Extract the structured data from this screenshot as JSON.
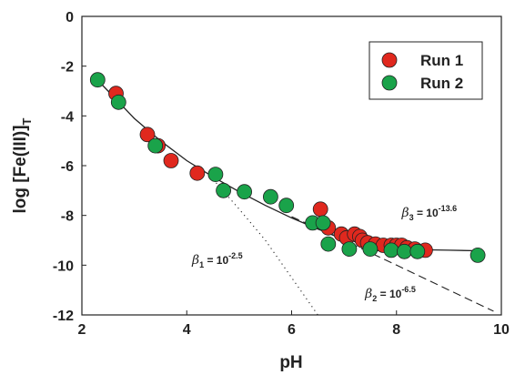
{
  "chart_data": {
    "type": "scatter",
    "xlabel": "pH",
    "ylabel_main": "log [Fe(III)]",
    "ylabel_sub": "T",
    "xlim": [
      2,
      10
    ],
    "ylim": [
      -12,
      0
    ],
    "xticks": [
      2,
      4,
      6,
      8,
      10
    ],
    "yticks": [
      0,
      -2,
      -4,
      -6,
      -8,
      -10,
      -12
    ],
    "grid": false,
    "legend_position": "top-right",
    "series": [
      {
        "name": "Run 1",
        "color": "#e0281e",
        "points": [
          [
            2.65,
            -3.1
          ],
          [
            3.25,
            -4.75
          ],
          [
            3.45,
            -5.2
          ],
          [
            3.7,
            -5.8
          ],
          [
            4.2,
            -6.3
          ],
          [
            6.55,
            -7.75
          ],
          [
            6.7,
            -8.5
          ],
          [
            6.95,
            -8.75
          ],
          [
            7.05,
            -8.9
          ],
          [
            7.2,
            -8.75
          ],
          [
            7.3,
            -8.85
          ],
          [
            7.35,
            -9.0
          ],
          [
            7.45,
            -9.1
          ],
          [
            7.6,
            -9.15
          ],
          [
            7.75,
            -9.2
          ],
          [
            7.9,
            -9.2
          ],
          [
            8.0,
            -9.2
          ],
          [
            8.1,
            -9.2
          ],
          [
            8.2,
            -9.3
          ],
          [
            8.35,
            -9.35
          ],
          [
            8.55,
            -9.4
          ]
        ]
      },
      {
        "name": "Run 2",
        "color": "#1aa34a",
        "points": [
          [
            2.3,
            -2.55
          ],
          [
            2.7,
            -3.45
          ],
          [
            3.4,
            -5.2
          ],
          [
            4.55,
            -6.35
          ],
          [
            4.7,
            -7.0
          ],
          [
            5.1,
            -7.05
          ],
          [
            5.6,
            -7.25
          ],
          [
            5.9,
            -7.6
          ],
          [
            6.4,
            -8.3
          ],
          [
            6.6,
            -8.3
          ],
          [
            6.7,
            -9.15
          ],
          [
            7.1,
            -9.35
          ],
          [
            7.5,
            -9.35
          ],
          [
            7.9,
            -9.4
          ],
          [
            8.15,
            -9.45
          ],
          [
            8.4,
            -9.45
          ],
          [
            9.55,
            -9.6
          ]
        ]
      }
    ],
    "model_curves": [
      {
        "name": "total",
        "style": "solid",
        "x": [
          2.25,
          2.5,
          3,
          3.5,
          4,
          4.5,
          5,
          5.5,
          6,
          6.5,
          7,
          7.5,
          8,
          8.5,
          9,
          9.55
        ],
        "y": [
          -2.45,
          -3.0,
          -4.1,
          -5.0,
          -5.8,
          -6.45,
          -7.05,
          -7.6,
          -8.1,
          -8.55,
          -8.95,
          -9.2,
          -9.32,
          -9.38,
          -9.4,
          -9.42
        ]
      },
      {
        "name": "beta2",
        "style": "dashed",
        "x": [
          6.0,
          7.0,
          8.0,
          9.0,
          9.85
        ],
        "y": [
          -8.05,
          -9.0,
          -10.0,
          -11.0,
          -11.85
        ]
      },
      {
        "name": "beta1",
        "style": "dotted",
        "x": [
          4.5,
          5.0,
          5.5,
          6.0,
          6.5
        ],
        "y": [
          -6.55,
          -7.75,
          -9.0,
          -10.5,
          -12.0
        ]
      }
    ],
    "annotations": [
      {
        "id": "beta3",
        "beta_label": "β",
        "beta_sub": "3",
        "text": " = 10",
        "exponent": "-13.6",
        "x": 8.1,
        "y": -8.05
      },
      {
        "id": "beta1",
        "beta_label": "β",
        "beta_sub": "1",
        "text": " = 10",
        "exponent": "-2.5",
        "x": 4.1,
        "y": -9.95
      },
      {
        "id": "beta2",
        "beta_label": "β",
        "beta_sub": "2",
        "text": " = 10",
        "exponent": "-6.5",
        "x": 7.4,
        "y": -11.3
      }
    ]
  }
}
